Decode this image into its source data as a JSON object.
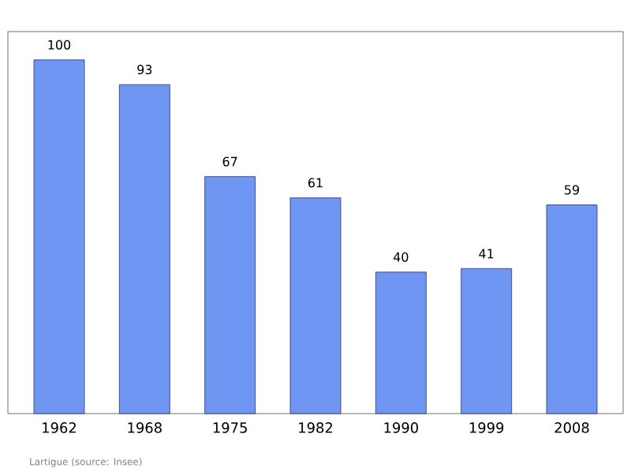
{
  "chart_data": {
    "type": "bar",
    "categories": [
      "1962",
      "1968",
      "1975",
      "1982",
      "1990",
      "1999",
      "2008"
    ],
    "values": [
      100,
      93,
      67,
      61,
      40,
      41,
      59
    ],
    "color": "#6f96f2",
    "data_labels": true,
    "annotations": [
      "Lartigue    (source: Insee)"
    ]
  }
}
